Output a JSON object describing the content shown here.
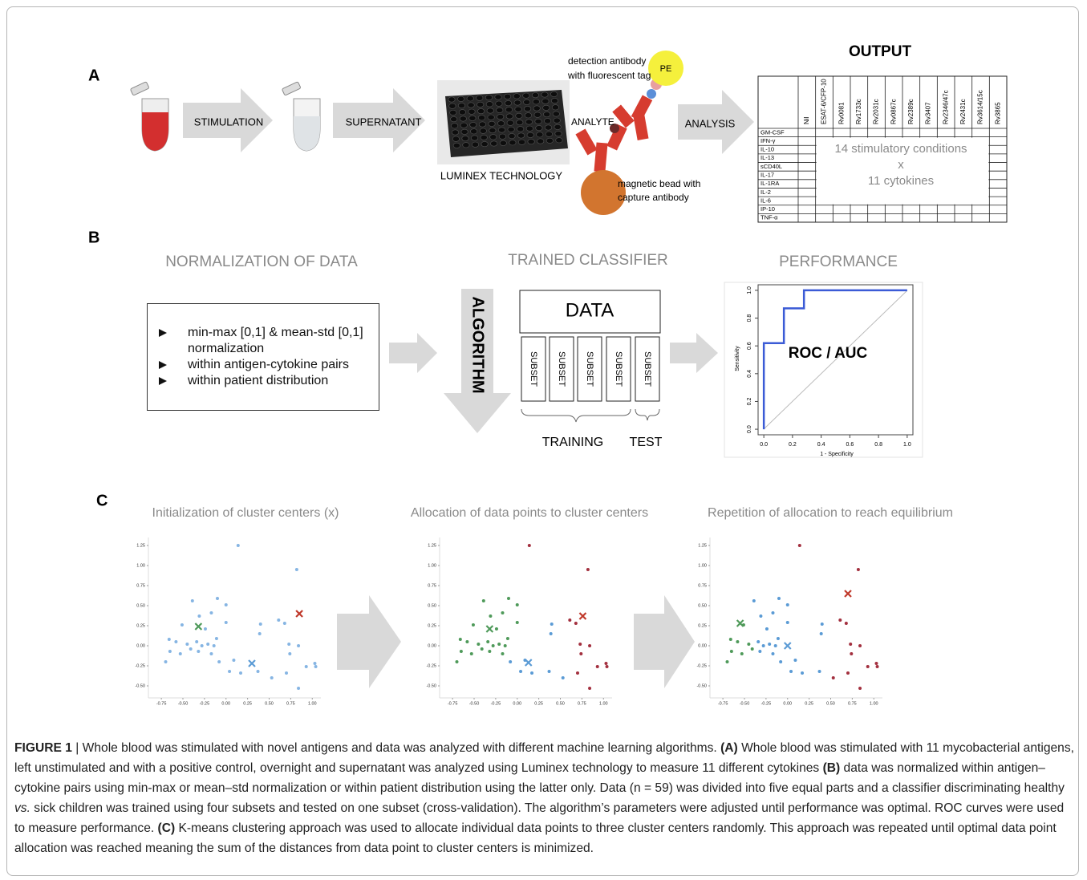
{
  "panel_a": {
    "label": "A",
    "steps": [
      "STIMULATION",
      "SUPERNATANT",
      "LUMINEX TECHNOLOGY",
      "ANALYSIS"
    ],
    "assay": {
      "pe": "PE",
      "detection": [
        "detection antibody",
        "with fluorescent tag"
      ],
      "analyte": "ANALYTE",
      "bead": [
        "magnetic bead with",
        "capture antibody"
      ]
    },
    "output": {
      "title": "OUTPUT",
      "columns": [
        "Nil",
        "ESAT-6/CFP-10",
        "Rv0081",
        "Rv1733c",
        "Rv2031c",
        "Rv0867c",
        "Rv2389c",
        "Rv3407",
        "Rv2346/47c",
        "Rv2431c",
        "Rv3614/15c",
        "Rv3865"
      ],
      "rows": [
        "GM-CSF",
        "IFN-γ",
        "IL-10",
        "IL-13",
        "sCD40L",
        "IL-17",
        "IL-1RA",
        "IL-2",
        "IL-6",
        "IP-10",
        "TNF-α"
      ],
      "center": [
        "14 stimulatory conditions",
        "x",
        "11 cytokines"
      ]
    }
  },
  "panel_b": {
    "label": "B",
    "normalization": {
      "title": "NORMALIZATION OF DATA",
      "items": [
        "min-max [0,1] & mean-std [0,1] normalization",
        "within antigen-cytokine pairs",
        "within patient distribution"
      ]
    },
    "classifier": {
      "title": "TRAINED CLASSIFIER",
      "algorithm": "ALGORITHM",
      "data": "DATA",
      "subsets": [
        "SUBSET",
        "SUBSET",
        "SUBSET",
        "SUBSET",
        "SUBSET"
      ],
      "training": "TRAINING",
      "test": "TEST"
    },
    "performance": {
      "title": "PERFORMANCE",
      "label": "ROC / AUC",
      "xlabel": "1 - Specificity",
      "ylabel": "Sensitivity",
      "color": "#3b5bd6",
      "x": [
        0,
        0,
        0.14,
        0.14,
        0.28,
        0.28,
        1
      ],
      "y": [
        0,
        0.62,
        0.62,
        0.87,
        0.87,
        1,
        1
      ],
      "xlim": [
        -0.04,
        1.04
      ],
      "ylim": [
        -0.04,
        1.04
      ],
      "xticks": [
        {
          "value": 0,
          "label": "0.0"
        },
        0.2,
        0.4,
        0.6,
        0.8,
        {
          "value": 1,
          "label": "1.0"
        }
      ],
      "yticks": [
        {
          "value": 0,
          "label": "0.0"
        },
        0.2,
        0.4,
        0.6,
        0.8,
        {
          "value": 1,
          "label": "1.0"
        }
      ]
    }
  },
  "panel_c": {
    "label": "C",
    "xlim": [
      -0.9,
      1.1
    ],
    "ylim": [
      -0.65,
      1.35
    ],
    "xticks": [
      -0.75,
      {
        "value": -0.5,
        "label": "-0.50"
      },
      -0.25,
      {
        "value": 0,
        "label": "0.00"
      },
      0.25,
      {
        "value": 0.5,
        "label": "0.50"
      },
      0.75,
      {
        "value": 1,
        "label": "1.00"
      }
    ],
    "yticks": [
      {
        "value": -0.5,
        "label": "-0.50"
      },
      -0.25,
      {
        "value": 0,
        "label": "0.00"
      },
      0.25,
      {
        "value": 0.5,
        "label": "0.50"
      },
      0.75,
      {
        "value": 1,
        "label": "1.00"
      },
      1.25
    ],
    "points": {
      "x": [
        0.14,
        0.82,
        -0.39,
        -0.1,
        0,
        -0.17,
        -0.31,
        0,
        -0.51,
        -0.24,
        0.4,
        0.61,
        0.68,
        0.39,
        -0.66,
        -0.58,
        -0.45,
        -0.34,
        -0.28,
        -0.21,
        -0.14,
        -0.41,
        -0.32,
        -0.53,
        -0.65,
        -0.7,
        -0.17,
        -0.08,
        0.04,
        0.17,
        0.37,
        0.53,
        0.7,
        0.84,
        0.84,
        0.73,
        0.93,
        1.03,
        1.04,
        0.74,
        -0.11,
        0.09
      ],
      "y": [
        1.25,
        0.95,
        0.56,
        0.59,
        0.51,
        0.41,
        0.37,
        0.29,
        0.26,
        0.21,
        0.27,
        0.32,
        0.28,
        0.15,
        0.08,
        0.05,
        0.02,
        0.05,
        0,
        0.02,
        0,
        -0.04,
        -0.07,
        -0.1,
        -0.07,
        -0.2,
        -0.1,
        -0.2,
        -0.32,
        -0.34,
        -0.32,
        -0.4,
        -0.34,
        -0.53,
        0,
        0.02,
        -0.26,
        -0.22,
        -0.26,
        -0.1,
        0.09,
        -0.18
      ]
    },
    "plots": [
      {
        "title": "Initialization of cluster centers (x)",
        "colors": [
          "#86b5e3"
        ],
        "centers": [
          {
            "x": -0.32,
            "y": 0.24,
            "color": "#4f9a5a"
          },
          {
            "x": 0.3,
            "y": -0.22,
            "color": "#5b9bd5"
          },
          {
            "x": 0.85,
            "y": 0.4,
            "color": "#c0392b"
          }
        ]
      },
      {
        "title": "Allocation of data points to cluster centers",
        "colors": [
          "#5b9bd5",
          "#4f9a5a",
          "#a3303f"
        ],
        "groups": [
          2,
          2,
          1,
          1,
          1,
          1,
          1,
          1,
          1,
          1,
          0,
          2,
          2,
          0,
          1,
          1,
          1,
          1,
          1,
          1,
          1,
          1,
          1,
          1,
          1,
          1,
          1,
          0,
          0,
          0,
          0,
          0,
          2,
          2,
          2,
          2,
          2,
          2,
          2,
          2,
          1,
          0
        ],
        "centers": [
          {
            "x": -0.32,
            "y": 0.21,
            "color": "#4f9a5a"
          },
          {
            "x": 0.13,
            "y": -0.21,
            "color": "#5b9bd5"
          },
          {
            "x": 0.76,
            "y": 0.37,
            "color": "#c0392b"
          }
        ]
      },
      {
        "title": "Repetition of allocation to reach equilibrium",
        "colors": [
          "#5b9bd5",
          "#4f9a5a",
          "#a3303f"
        ],
        "groups": [
          2,
          2,
          0,
          0,
          0,
          0,
          0,
          0,
          1,
          0,
          0,
          2,
          2,
          0,
          1,
          1,
          1,
          0,
          0,
          0,
          0,
          1,
          0,
          1,
          1,
          1,
          0,
          0,
          0,
          0,
          0,
          2,
          2,
          2,
          2,
          2,
          2,
          2,
          2,
          2,
          0,
          0
        ],
        "centers": [
          {
            "x": -0.55,
            "y": 0.28,
            "color": "#4f9a5a"
          },
          {
            "x": 0,
            "y": 0,
            "color": "#5b9bd5"
          },
          {
            "x": 0.7,
            "y": 0.65,
            "color": "#c0392b"
          }
        ]
      }
    ]
  },
  "caption": [
    {
      "text": "FIGURE 1",
      "style": "bold"
    },
    {
      "text": " | Whole blood was stimulated with novel antigens and data was analyzed with different machine learning algorithms. ",
      "style": "normal"
    },
    {
      "text": "(A)",
      "style": "bold"
    },
    {
      "text": " Whole blood was stimulated with 11 mycobacterial antigens, left unstimulated and with a positive control, overnight and supernatant was analyzed using Luminex technology to measure 11 different cytokines ",
      "style": "normal"
    },
    {
      "text": "(B)",
      "style": "bold"
    },
    {
      "text": " data was normalized within antigen–cytokine pairs using min-max or mean–std normalization or within patient distribution using the latter only. Data (n = 59) was divided into five equal parts and a classifier discriminating healthy ",
      "style": "normal"
    },
    {
      "text": "vs.",
      "style": "italic"
    },
    {
      "text": " sick children was trained using four subsets and tested on one subset (cross-validation). The algorithm’s parameters were adjusted until performance was optimal. ROC curves were used to measure performance. ",
      "style": "normal"
    },
    {
      "text": "(C)",
      "style": "bold"
    },
    {
      "text": " K-means clustering approach was used to allocate individual data points to three cluster centers randomly. This approach was repeated until optimal data point allocation was reached meaning the sum of the distances from data point to cluster centers is minimized.",
      "style": "normal"
    }
  ]
}
